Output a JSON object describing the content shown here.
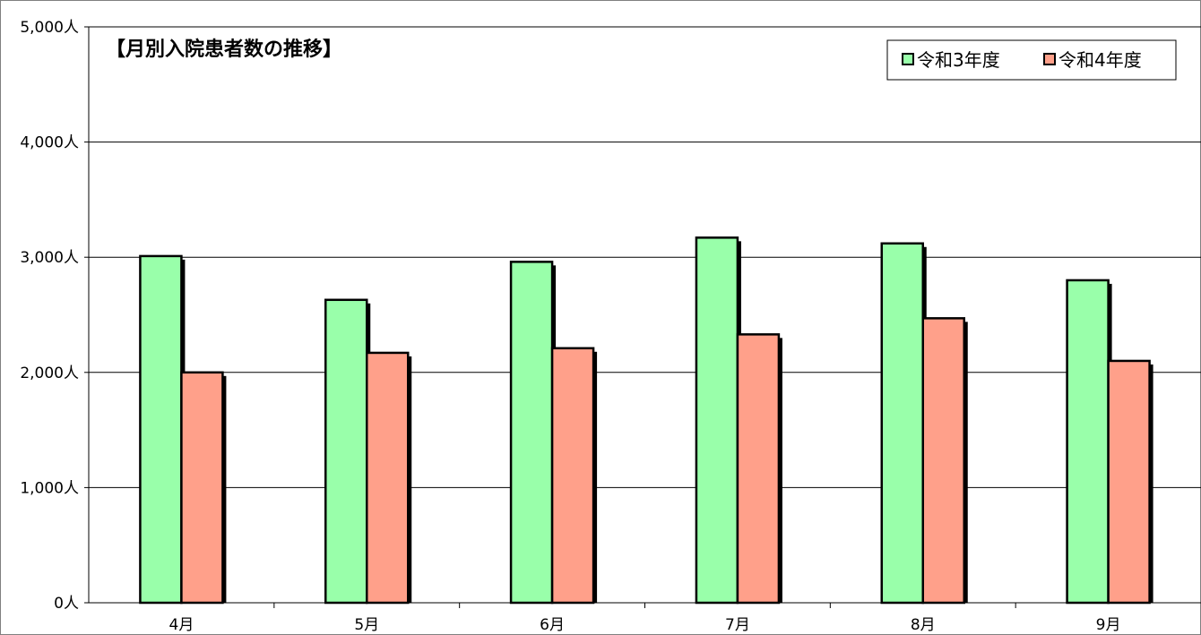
{
  "chart_data": {
    "type": "bar",
    "title": "【月別入院患者数の推移】",
    "xlabel": "",
    "ylabel": "",
    "categories": [
      "4月",
      "5月",
      "6月",
      "7月",
      "8月",
      "9月"
    ],
    "series": [
      {
        "name": "令和3年度",
        "color": "#99ffaa",
        "values": [
          3010,
          2630,
          2960,
          3170,
          3120,
          2800
        ]
      },
      {
        "name": "令和4年度",
        "color": "#ffa08a",
        "values": [
          2000,
          2170,
          2210,
          2330,
          2470,
          2100
        ]
      }
    ],
    "ylim": [
      0,
      5000
    ],
    "yticks": [
      0,
      1000,
      2000,
      3000,
      4000,
      5000
    ],
    "ytick_labels": [
      "0人",
      "1,000人",
      "2,000人",
      "3,000人",
      "4,000人",
      "5,000人"
    ],
    "grid": true,
    "legend_position": "top-right",
    "legend_marker": "□"
  }
}
